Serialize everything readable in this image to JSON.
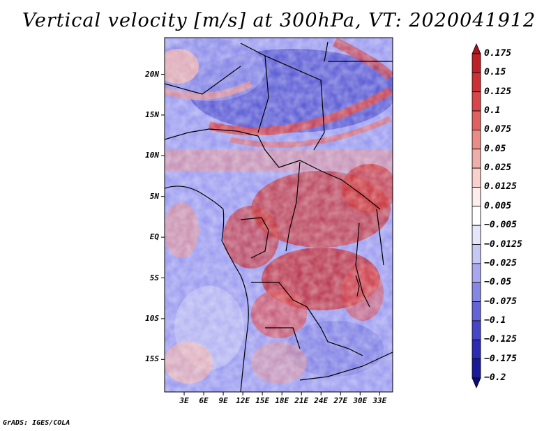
{
  "title": "Vertical velocity [m/s] at 300hPa, VT: 2020041912",
  "credit": "GrADS: IGES/COLA",
  "map": {
    "lat_ticks": [
      "20N",
      "15N",
      "10N",
      "5N",
      "EQ",
      "5S",
      "10S",
      "15S"
    ],
    "lon_ticks": [
      "3E",
      "6E",
      "9E",
      "12E",
      "15E",
      "18E",
      "21E",
      "24E",
      "27E",
      "30E",
      "33E"
    ],
    "lat_range": [
      -19,
      24.5
    ],
    "lon_range": [
      0,
      35
    ]
  },
  "colorbar": {
    "labels": [
      "0.175",
      "0.15",
      "0.125",
      "0.1",
      "0.075",
      "0.05",
      "0.025",
      "0.0125",
      "0.005",
      "−0.005",
      "−0.0125",
      "−0.025",
      "−0.05",
      "−0.075",
      "−0.1",
      "−0.125",
      "−0.175",
      "−0.2"
    ],
    "colors": [
      "#a8141c",
      "#bf2028",
      "#cc3035",
      "#d8454a",
      "#e0615f",
      "#e98b86",
      "#f0aea8",
      "#f8d0cc",
      "#fdeeec",
      "#ffffff",
      "#e6e6fb",
      "#c8c8f4",
      "#a8a8ee",
      "#8686e4",
      "#6464d8",
      "#4646c8",
      "#2c2cb2",
      "#1a1a98",
      "#0c0c78"
    ]
  }
}
